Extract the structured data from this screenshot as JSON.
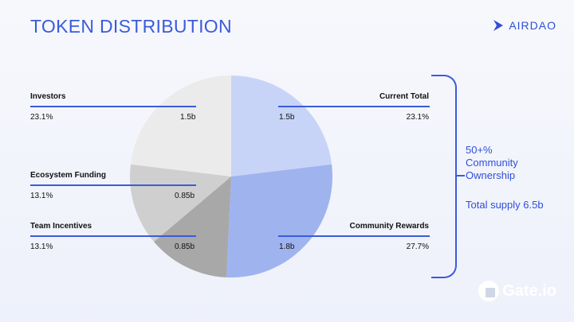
{
  "title": "TOKEN DISTRIBUTION",
  "brand": {
    "name": "AIRDAO",
    "icon": "chevron-right-icon",
    "color": "#2f4fd8"
  },
  "chart_data": {
    "type": "pie",
    "title": "TOKEN DISTRIBUTION",
    "slices": [
      {
        "name": "Current Total",
        "amount": "1.5b",
        "percent_label": "23.1%",
        "value": 23.1,
        "color": "#c8d4f7"
      },
      {
        "name": "Community Rewards",
        "amount": "1.8b",
        "percent_label": "27.7%",
        "value": 27.7,
        "color": "#9fb3ef"
      },
      {
        "name": "Team Incentives",
        "amount": "0.85b",
        "percent_label": "13.1%",
        "value": 13.1,
        "color": "#a8a8a8"
      },
      {
        "name": "Ecosystem Funding",
        "amount": "0.85b",
        "percent_label": "13.1%",
        "value": 13.1,
        "color": "#cfcfcf"
      },
      {
        "name": "Investors",
        "amount": "1.5b",
        "percent_label": "23.1%",
        "value": 23.1,
        "color": "#ebebeb"
      }
    ]
  },
  "summary": {
    "community_line1": "50+%",
    "community_line2": "Community",
    "community_line3": "Ownership",
    "total_supply": "Total supply 6.5b"
  },
  "footer": {
    "logo": "Gate.io"
  }
}
